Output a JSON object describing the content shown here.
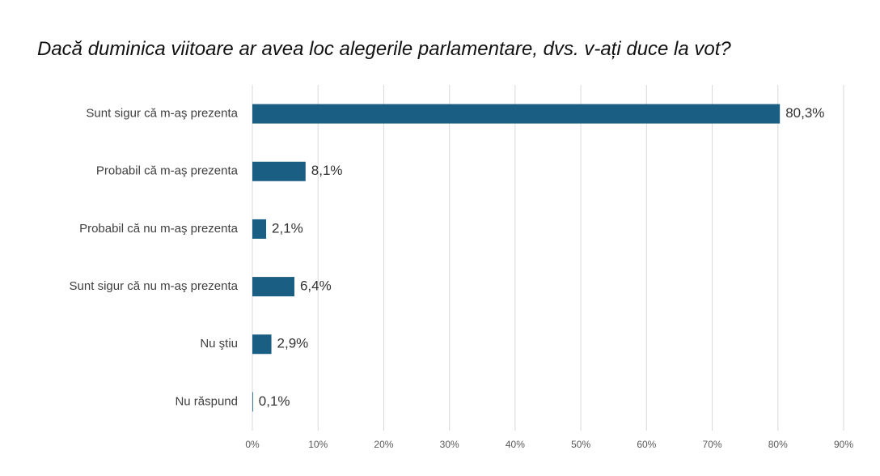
{
  "chart_data": {
    "type": "hbar",
    "title": "Dacă duminica viitoare ar avea loc alegerile parlamentare, dvs. v-ați duce la vot?",
    "categories": [
      "Sunt sigur că m-aş prezenta",
      "Probabil că m-aş prezenta",
      "Probabil că nu m-aş prezenta",
      "Sunt sigur că nu m-aş prezenta",
      "Nu ştiu",
      "Nu răspund"
    ],
    "values": [
      80.3,
      8.1,
      2.1,
      6.4,
      2.9,
      0.1
    ],
    "value_labels": [
      "80,3%",
      "8,1%",
      "2,1%",
      "6,4%",
      "2,9%",
      "0,1%"
    ],
    "color": "#1a5e83",
    "xlim": [
      0,
      90
    ],
    "xticks": [
      {
        "value": 0,
        "label": "0%"
      },
      {
        "value": 10,
        "label": "10%"
      },
      {
        "value": 20,
        "label": "20%"
      },
      {
        "value": 30,
        "label": "30%"
      },
      {
        "value": 40,
        "label": "40%"
      },
      {
        "value": 50,
        "label": "50%"
      },
      {
        "value": 60,
        "label": "60%"
      },
      {
        "value": 70,
        "label": "70%"
      },
      {
        "value": 80,
        "label": "80%"
      },
      {
        "value": 90,
        "label": "90%"
      }
    ],
    "grid": true
  }
}
